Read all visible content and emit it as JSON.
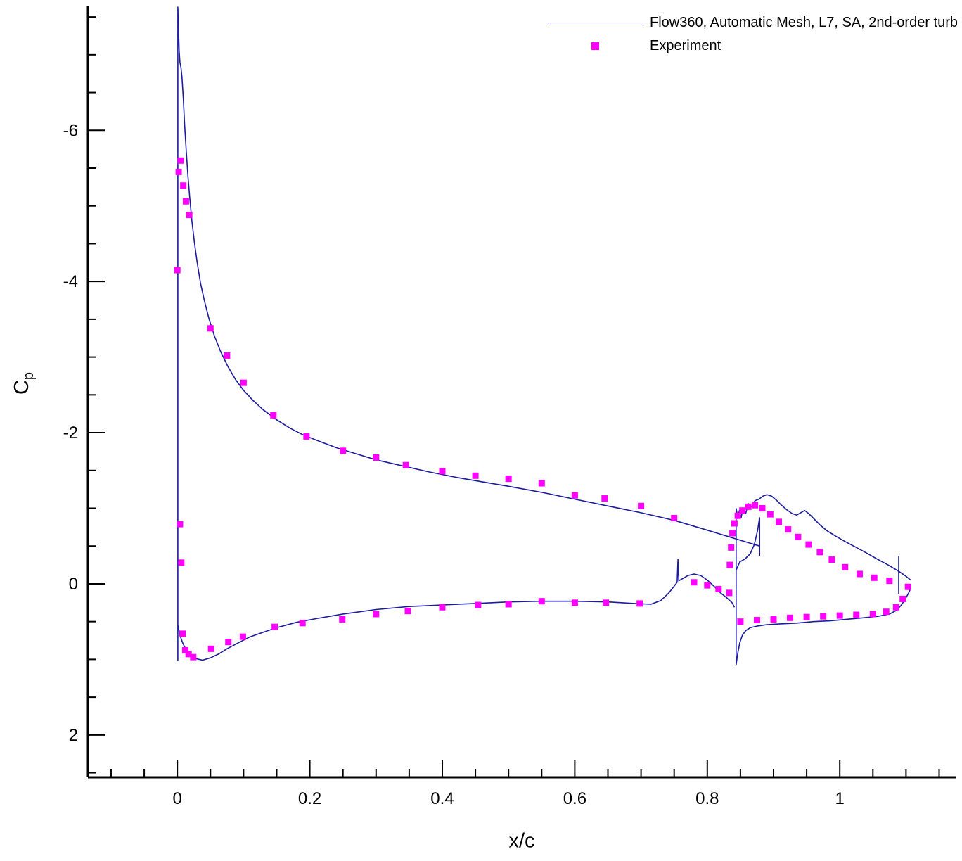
{
  "figure": {
    "background": "#ffffff",
    "title": ""
  },
  "chart_data": {
    "type": "line",
    "title": "",
    "xlabel": "x/c",
    "ylabel": "C",
    "ylabel_sub": "p",
    "legend_position": "top-right",
    "x_axis": {
      "min": -0.135,
      "max": 1.176,
      "major_ticks": [
        0,
        0.2,
        0.4,
        0.6,
        0.8,
        1
      ],
      "major_labels": [
        "0",
        "0.2",
        "0.4",
        "0.6",
        "0.8",
        "1"
      ],
      "minor_step": 0.05
    },
    "y_axis": {
      "top_value": -7.65,
      "bottom_value": 2.56,
      "major_ticks": [
        -6,
        -4,
        -2,
        0,
        2
      ],
      "major_labels": [
        "-6",
        "-4",
        "-2",
        "0",
        "2"
      ],
      "minor_step": 0.5,
      "inverted": true
    },
    "series": [
      {
        "name": "Flow360, Automatic Mesh, L7, SA, 2nd-order turb",
        "type": "line",
        "color": "#1c1c9e",
        "segments": [
          {
            "name": "main-upper",
            "points": [
              [
                0.0008,
                1.02
              ],
              [
                0.0008,
                -7.63
              ],
              [
                0.0018,
                -7.32
              ],
              [
                0.0028,
                -7.05
              ],
              [
                0.004,
                -6.9
              ],
              [
                0.0055,
                -6.83
              ],
              [
                0.007,
                -6.7
              ],
              [
                0.009,
                -6.42
              ],
              [
                0.011,
                -6.08
              ],
              [
                0.0135,
                -5.72
              ],
              [
                0.016,
                -5.4
              ],
              [
                0.019,
                -5.08
              ],
              [
                0.022,
                -4.8
              ],
              [
                0.026,
                -4.5
              ],
              [
                0.03,
                -4.25
              ],
              [
                0.035,
                -3.98
              ],
              [
                0.041,
                -3.74
              ],
              [
                0.048,
                -3.5
              ],
              [
                0.056,
                -3.28
              ],
              [
                0.065,
                -3.08
              ],
              [
                0.076,
                -2.88
              ],
              [
                0.088,
                -2.7
              ],
              [
                0.1,
                -2.56
              ],
              [
                0.115,
                -2.42
              ],
              [
                0.13,
                -2.3
              ],
              [
                0.15,
                -2.17
              ],
              [
                0.17,
                -2.06
              ],
              [
                0.19,
                -1.97
              ],
              [
                0.21,
                -1.9
              ],
              [
                0.24,
                -1.8
              ],
              [
                0.27,
                -1.72
              ],
              [
                0.3,
                -1.64
              ],
              [
                0.34,
                -1.56
              ],
              [
                0.38,
                -1.48
              ],
              [
                0.42,
                -1.41
              ],
              [
                0.46,
                -1.35
              ],
              [
                0.5,
                -1.29
              ],
              [
                0.55,
                -1.21
              ],
              [
                0.6,
                -1.12
              ],
              [
                0.65,
                -1.03
              ],
              [
                0.7,
                -0.94
              ],
              [
                0.75,
                -0.84
              ],
              [
                0.8,
                -0.71
              ],
              [
                0.83,
                -0.63
              ],
              [
                0.86,
                -0.55
              ],
              [
                0.879,
                -0.5
              ]
            ]
          },
          {
            "name": "main-te-jump",
            "points": [
              [
                0.879,
                -0.88
              ],
              [
                0.879,
                -0.37
              ]
            ]
          },
          {
            "name": "main-lower",
            "points": [
              [
                0.0008,
                0.55
              ],
              [
                0.004,
                0.68
              ],
              [
                0.008,
                0.78
              ],
              [
                0.013,
                0.87
              ],
              [
                0.02,
                0.94
              ],
              [
                0.028,
                0.99
              ],
              [
                0.038,
                1.01
              ],
              [
                0.05,
                0.98
              ],
              [
                0.062,
                0.93
              ],
              [
                0.075,
                0.86
              ],
              [
                0.09,
                0.79
              ],
              [
                0.11,
                0.7
              ],
              [
                0.13,
                0.64
              ],
              [
                0.15,
                0.58
              ],
              [
                0.18,
                0.51
              ],
              [
                0.21,
                0.46
              ],
              [
                0.25,
                0.4
              ],
              [
                0.3,
                0.34
              ],
              [
                0.35,
                0.3
              ],
              [
                0.4,
                0.28
              ],
              [
                0.45,
                0.26
              ],
              [
                0.5,
                0.24
              ],
              [
                0.55,
                0.23
              ],
              [
                0.6,
                0.23
              ],
              [
                0.65,
                0.24
              ],
              [
                0.69,
                0.26
              ],
              [
                0.715,
                0.27
              ],
              [
                0.73,
                0.22
              ],
              [
                0.742,
                0.12
              ],
              [
                0.75,
                0.03
              ],
              [
                0.7545,
                -0.02
              ],
              [
                0.7557,
                -0.32
              ],
              [
                0.757,
                -0.04
              ],
              [
                0.763,
                -0.07
              ],
              [
                0.771,
                -0.11
              ],
              [
                0.78,
                -0.13
              ],
              [
                0.79,
                -0.11
              ],
              [
                0.8,
                -0.05
              ],
              [
                0.81,
                0.03
              ],
              [
                0.82,
                0.12
              ],
              [
                0.83,
                0.19
              ],
              [
                0.8375,
                0.25
              ],
              [
                0.841,
                0.31
              ]
            ]
          },
          {
            "name": "cove",
            "points": [
              [
                0.8435,
                -0.18
              ],
              [
                0.849,
                -0.29
              ],
              [
                0.857,
                -0.33
              ],
              [
                0.865,
                -0.4
              ],
              [
                0.871,
                -0.52
              ],
              [
                0.876,
                -0.71
              ],
              [
                0.8788,
                -0.87
              ]
            ]
          },
          {
            "name": "flap-le-spike",
            "points": [
              [
                0.8435,
                1.07
              ],
              [
                0.8435,
                -1.0
              ]
            ]
          },
          {
            "name": "flap-upper",
            "points": [
              [
                0.8435,
                -1.0
              ],
              [
                0.846,
                -0.88
              ],
              [
                0.8485,
                -0.97
              ],
              [
                0.851,
                -0.87
              ],
              [
                0.854,
                -1.0
              ],
              [
                0.858,
                -0.93
              ],
              [
                0.862,
                -1.06
              ],
              [
                0.867,
                -1.02
              ],
              [
                0.872,
                -1.1
              ],
              [
                0.878,
                -1.12
              ],
              [
                0.884,
                -1.16
              ],
              [
                0.89,
                -1.18
              ],
              [
                0.897,
                -1.16
              ],
              [
                0.904,
                -1.11
              ],
              [
                0.912,
                -1.04
              ],
              [
                0.92,
                -0.98
              ],
              [
                0.928,
                -0.93
              ],
              [
                0.935,
                -0.91
              ],
              [
                0.941,
                -0.94
              ],
              [
                0.947,
                -0.97
              ],
              [
                0.953,
                -0.93
              ],
              [
                0.961,
                -0.86
              ],
              [
                0.97,
                -0.78
              ],
              [
                0.981,
                -0.7
              ],
              [
                0.994,
                -0.63
              ],
              [
                1.008,
                -0.56
              ],
              [
                1.023,
                -0.49
              ],
              [
                1.04,
                -0.41
              ],
              [
                1.058,
                -0.32
              ],
              [
                1.075,
                -0.24
              ],
              [
                1.09,
                -0.16
              ],
              [
                1.1,
                -0.1
              ],
              [
                1.107,
                -0.05
              ]
            ]
          },
          {
            "name": "flap-lower",
            "points": [
              [
                0.8435,
                1.07
              ],
              [
                0.846,
                0.92
              ],
              [
                0.849,
                0.78
              ],
              [
                0.853,
                0.68
              ],
              [
                0.858,
                0.62
              ],
              [
                0.865,
                0.58
              ],
              [
                0.875,
                0.56
              ],
              [
                0.89,
                0.54
              ],
              [
                0.91,
                0.53
              ],
              [
                0.935,
                0.52
              ],
              [
                0.96,
                0.5
              ],
              [
                0.985,
                0.49
              ],
              [
                1.01,
                0.47
              ],
              [
                1.035,
                0.45
              ],
              [
                1.058,
                0.43
              ],
              [
                1.075,
                0.4
              ],
              [
                1.086,
                0.35
              ],
              [
                1.093,
                0.28
              ],
              [
                1.099,
                0.2
              ],
              [
                1.104,
                0.12
              ],
              [
                1.107,
                0.06
              ]
            ]
          },
          {
            "name": "flap-te-jump",
            "points": [
              [
                1.089,
                -0.37
              ],
              [
                1.089,
                0.14
              ]
            ]
          }
        ]
      },
      {
        "name": "Experiment",
        "type": "scatter",
        "color": "#ff00ff",
        "marker": "square",
        "points": [
          [
            0.0,
            -4.15
          ],
          [
            0.002,
            -5.45
          ],
          [
            0.005,
            -5.6
          ],
          [
            0.009,
            -5.27
          ],
          [
            0.013,
            -5.06
          ],
          [
            0.018,
            -4.88
          ],
          [
            0.05,
            -3.38
          ],
          [
            0.075,
            -3.02
          ],
          [
            0.1,
            -2.66
          ],
          [
            0.145,
            -2.23
          ],
          [
            0.195,
            -1.95
          ],
          [
            0.25,
            -1.76
          ],
          [
            0.3,
            -1.67
          ],
          [
            0.345,
            -1.57
          ],
          [
            0.4,
            -1.49
          ],
          [
            0.45,
            -1.43
          ],
          [
            0.5,
            -1.39
          ],
          [
            0.55,
            -1.33
          ],
          [
            0.6,
            -1.17
          ],
          [
            0.645,
            -1.13
          ],
          [
            0.7,
            -1.03
          ],
          [
            0.75,
            -0.87
          ],
          [
            0.004,
            -0.79
          ],
          [
            0.006,
            -0.28
          ],
          [
            0.008,
            0.66
          ],
          [
            0.012,
            0.88
          ],
          [
            0.017,
            0.93
          ],
          [
            0.024,
            0.97
          ],
          [
            0.051,
            0.86
          ],
          [
            0.077,
            0.77
          ],
          [
            0.099,
            0.7
          ],
          [
            0.147,
            0.57
          ],
          [
            0.189,
            0.52
          ],
          [
            0.249,
            0.47
          ],
          [
            0.3,
            0.4
          ],
          [
            0.348,
            0.36
          ],
          [
            0.4,
            0.31
          ],
          [
            0.454,
            0.28
          ],
          [
            0.5,
            0.27
          ],
          [
            0.55,
            0.23
          ],
          [
            0.6,
            0.25
          ],
          [
            0.647,
            0.25
          ],
          [
            0.698,
            0.26
          ],
          [
            0.78,
            -0.02
          ],
          [
            0.8,
            0.02
          ],
          [
            0.817,
            0.07
          ],
          [
            0.833,
            0.12
          ],
          [
            0.834,
            -0.25
          ],
          [
            0.836,
            -0.48
          ],
          [
            0.838,
            -0.67
          ],
          [
            0.841,
            -0.8
          ],
          [
            0.846,
            -0.9
          ],
          [
            0.853,
            -0.97
          ],
          [
            0.862,
            -1.02
          ],
          [
            0.872,
            -1.04
          ],
          [
            0.883,
            -1.0
          ],
          [
            0.895,
            -0.92
          ],
          [
            0.908,
            -0.82
          ],
          [
            0.922,
            -0.72
          ],
          [
            0.937,
            -0.62
          ],
          [
            0.953,
            -0.52
          ],
          [
            0.97,
            -0.42
          ],
          [
            0.988,
            -0.32
          ],
          [
            1.008,
            -0.22
          ],
          [
            1.03,
            -0.13
          ],
          [
            1.052,
            -0.08
          ],
          [
            1.075,
            -0.04
          ],
          [
            1.103,
            0.04
          ],
          [
            0.85,
            0.5
          ],
          [
            0.875,
            0.48
          ],
          [
            0.9,
            0.47
          ],
          [
            0.925,
            0.45
          ],
          [
            0.95,
            0.44
          ],
          [
            0.975,
            0.43
          ],
          [
            1.0,
            0.42
          ],
          [
            1.025,
            0.41
          ],
          [
            1.05,
            0.4
          ],
          [
            1.07,
            0.37
          ],
          [
            1.085,
            0.31
          ],
          [
            1.095,
            0.2
          ]
        ]
      }
    ]
  }
}
